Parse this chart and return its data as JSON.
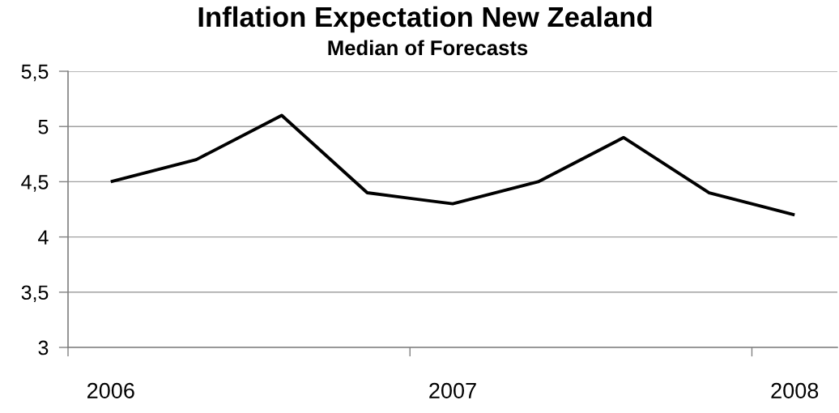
{
  "chart_data": {
    "type": "line",
    "title": "Inflation Expectation New Zealand",
    "subtitle": "Median of Forecasts",
    "categories": [
      "2006",
      null,
      null,
      null,
      "2007",
      null,
      null,
      null,
      "2008"
    ],
    "series": [
      {
        "color": "#000000",
        "values": [
          4.5,
          4.7,
          5.1,
          4.4,
          4.3,
          4.5,
          4.9,
          4.4,
          4.2
        ]
      }
    ],
    "ylim": [
      3,
      5.5
    ],
    "yticks": [
      3,
      {
        "value": 3.5,
        "label": "3,5"
      },
      4,
      {
        "value": 4.5,
        "label": "4,5"
      },
      5,
      {
        "value": 5.5,
        "label": "5,5"
      }
    ],
    "grid": "y",
    "line_style": "solid"
  }
}
